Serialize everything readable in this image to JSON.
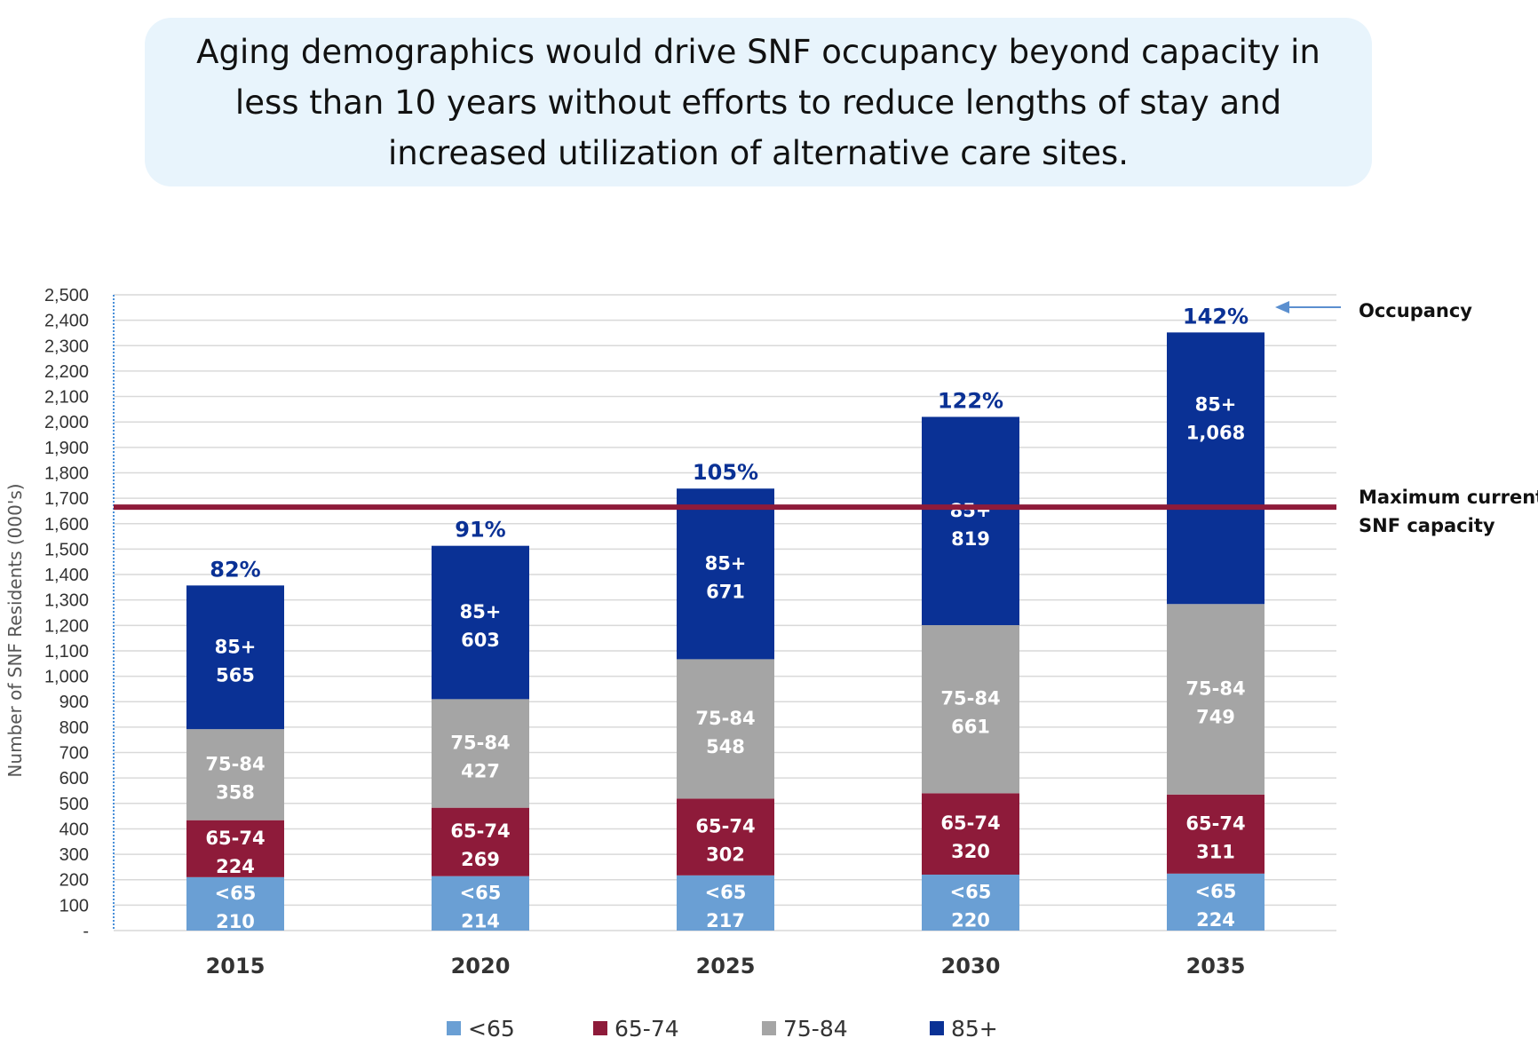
{
  "title": "Aging demographics would drive SNF occupancy beyond capacity in less than 10 years without efforts to reduce lengths of stay and increased utilization of alternative care sites.",
  "chart_data": {
    "type": "bar",
    "stacked": true,
    "categories": [
      "2015",
      "2020",
      "2025",
      "2030",
      "2035"
    ],
    "series": [
      {
        "name": "<65",
        "color": "#6a9fd4",
        "values": [
          210,
          214,
          217,
          220,
          224
        ]
      },
      {
        "name": "65-74",
        "color": "#8e1b3a",
        "values": [
          224,
          269,
          302,
          320,
          311
        ]
      },
      {
        "name": "75-84",
        "color": "#a5a5a5",
        "values": [
          358,
          427,
          548,
          661,
          749
        ]
      },
      {
        "name": "85+",
        "color": "#0a3195",
        "values": [
          565,
          603,
          671,
          819,
          1068
        ]
      }
    ],
    "value_labels": {
      "<65": [
        "210",
        "214",
        "217",
        "220",
        "224"
      ],
      "65-74": [
        "224",
        "269",
        "302",
        "320",
        "311"
      ],
      "75-84": [
        "358",
        "427",
        "548",
        "661",
        "749"
      ],
      "85+": [
        "565",
        "603",
        "671",
        "819",
        "1,068"
      ]
    },
    "occupancy_labels": [
      "82%",
      "91%",
      "105%",
      "122%",
      "142%"
    ],
    "capacity_line": {
      "value": 1665,
      "color": "#8e1b3a",
      "label_lines": [
        "Maximum current",
        "SNF capacity"
      ]
    },
    "occupancy_annotation": "Occupancy",
    "ylabel": "Number of SNF Residents (000's)",
    "ylim": [
      0,
      2500
    ],
    "yticks": [
      0,
      100,
      200,
      300,
      400,
      500,
      600,
      700,
      800,
      900,
      1000,
      1100,
      1200,
      1300,
      1400,
      1500,
      1600,
      1700,
      1800,
      1900,
      2000,
      2100,
      2200,
      2300,
      2400,
      2500
    ],
    "ytick_labels": [
      "-",
      "100",
      "200",
      "300",
      "400",
      "500",
      "600",
      "700",
      "800",
      "900",
      "1,000",
      "1,100",
      "1,200",
      "1,300",
      "1,400",
      "1,500",
      "1,600",
      "1,700",
      "1,800",
      "1,900",
      "2,000",
      "2,100",
      "2,200",
      "2,300",
      "2,400",
      "2,500"
    ],
    "grid": true,
    "legend": "bottom"
  }
}
